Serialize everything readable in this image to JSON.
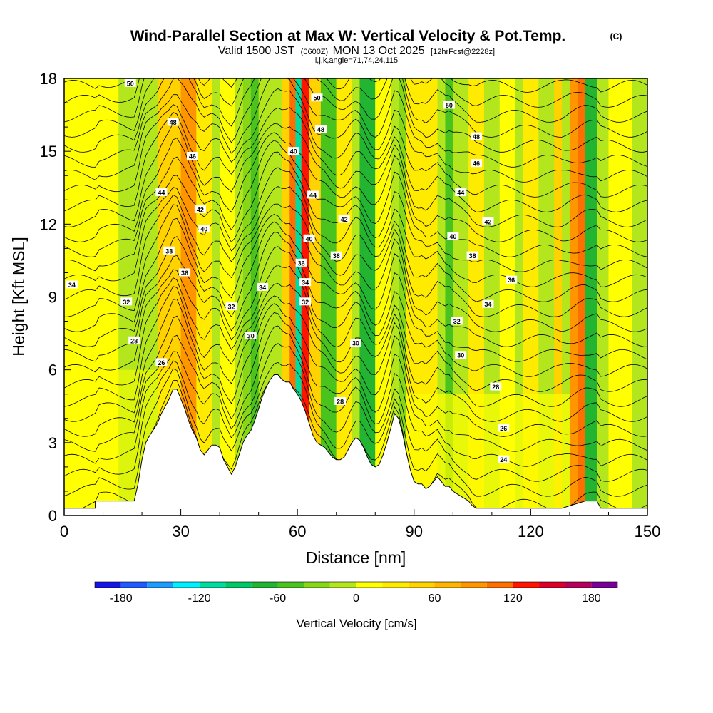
{
  "chart_data": {
    "type": "heatmap",
    "title": "Wind-Parallel Section at Max W: Vertical Velocity & Pot.Temp.",
    "title_mark": "(C)",
    "subtitle": {
      "valid_prefix": "Valid 1500 JST",
      "utc": "(0600Z)",
      "date": "MON 13 Oct 2025",
      "forecast": "[12hrFcst@2228z]"
    },
    "indices_line": "i,j,k,angle=71,74,24,115",
    "xlabel": "Distance [nm]",
    "ylabel": "Height [Kft MSL]",
    "xlim": [
      0,
      150
    ],
    "ylim": [
      0,
      18
    ],
    "x_ticks": [
      "0",
      "30",
      "60",
      "90",
      "120",
      "150"
    ],
    "y_ticks": [
      "0",
      "3",
      "6",
      "9",
      "12",
      "15",
      "18"
    ],
    "colorbar": {
      "label": "Vertical Velocity [cm/s]",
      "tick_labels": [
        "-180",
        "-120",
        "-60",
        "0",
        "60",
        "120",
        "180"
      ],
      "levels": [
        -200,
        -180,
        -160,
        -140,
        -120,
        -100,
        -80,
        -60,
        -40,
        -20,
        0,
        20,
        40,
        60,
        80,
        100,
        120,
        140,
        160,
        180,
        200
      ],
      "colors": [
        "#1414e6",
        "#1e5aff",
        "#1e9bff",
        "#00f0ff",
        "#00dca0",
        "#00c864",
        "#23b432",
        "#4bc31e",
        "#87d719",
        "#b4e61e",
        "#ffff00",
        "#ffeb00",
        "#ffd200",
        "#ffb400",
        "#ff9600",
        "#ff6e00",
        "#ff1400",
        "#dc0028",
        "#b4005a",
        "#780096"
      ]
    },
    "terrain": [
      [
        0,
        0.3
      ],
      [
        8,
        0.3
      ],
      [
        8,
        0.6
      ],
      [
        18,
        0.6
      ],
      [
        19,
        1.3
      ],
      [
        20,
        2.3
      ],
      [
        21,
        3.0
      ],
      [
        22,
        3.3
      ],
      [
        24,
        3.8
      ],
      [
        25,
        4.2
      ],
      [
        26,
        4.5
      ],
      [
        27,
        4.8
      ],
      [
        28,
        5.2
      ],
      [
        29,
        5.2
      ],
      [
        30,
        4.8
      ],
      [
        31,
        4.4
      ],
      [
        32,
        3.9
      ],
      [
        33,
        3.5
      ],
      [
        34,
        3.2
      ],
      [
        35,
        2.7
      ],
      [
        36,
        2.5
      ],
      [
        37,
        2.7
      ],
      [
        38,
        2.9
      ],
      [
        39,
        2.9
      ],
      [
        40,
        2.8
      ],
      [
        41,
        2.3
      ],
      [
        42,
        2.0
      ],
      [
        43,
        1.7
      ],
      [
        44,
        2.0
      ],
      [
        45,
        2.5
      ],
      [
        46,
        3.0
      ],
      [
        47,
        3.3
      ],
      [
        48,
        3.5
      ],
      [
        49,
        3.9
      ],
      [
        50,
        4.4
      ],
      [
        51,
        4.9
      ],
      [
        52,
        5.3
      ],
      [
        53,
        5.6
      ],
      [
        54,
        5.8
      ],
      [
        55,
        5.8
      ],
      [
        56,
        5.6
      ],
      [
        57,
        5.5
      ],
      [
        58,
        5.5
      ],
      [
        59,
        5.2
      ],
      [
        60,
        5.0
      ],
      [
        61,
        4.7
      ],
      [
        62,
        4.3
      ],
      [
        63,
        3.8
      ],
      [
        64,
        3.3
      ],
      [
        65,
        3.0
      ],
      [
        66,
        2.9
      ],
      [
        67,
        2.8
      ],
      [
        68,
        2.6
      ],
      [
        69,
        2.4
      ],
      [
        70,
        2.3
      ],
      [
        71,
        2.3
      ],
      [
        72,
        2.4
      ],
      [
        73,
        2.7
      ],
      [
        74,
        3.0
      ],
      [
        75,
        3.2
      ],
      [
        76,
        3.1
      ],
      [
        77,
        2.8
      ],
      [
        78,
        2.4
      ],
      [
        79,
        2.1
      ],
      [
        80,
        2.0
      ],
      [
        81,
        2.1
      ],
      [
        82,
        2.5
      ],
      [
        83,
        3.0
      ],
      [
        84,
        3.6
      ],
      [
        85,
        4.2
      ],
      [
        86,
        4.0
      ],
      [
        87,
        3.4
      ],
      [
        88,
        2.6
      ],
      [
        89,
        1.9
      ],
      [
        90,
        1.4
      ],
      [
        91,
        1.3
      ],
      [
        92,
        1.3
      ],
      [
        93,
        1.1
      ],
      [
        94,
        1.2
      ],
      [
        95,
        1.4
      ],
      [
        96,
        1.6
      ],
      [
        97,
        1.4
      ],
      [
        98,
        1.2
      ],
      [
        99,
        1.2
      ],
      [
        100,
        1.0
      ],
      [
        101,
        0.9
      ],
      [
        102,
        0.8
      ],
      [
        103,
        0.7
      ],
      [
        104,
        0.6
      ],
      [
        105,
        0.4
      ],
      [
        106,
        0.3
      ],
      [
        110,
        0.3
      ],
      [
        120,
        0.3
      ],
      [
        128,
        0.3
      ],
      [
        130,
        0.4
      ],
      [
        132,
        0.5
      ],
      [
        134,
        0.6
      ],
      [
        137,
        0.6
      ],
      [
        138,
        0.3
      ],
      [
        150,
        0.3
      ]
    ],
    "theta_contours": {
      "levels_k": [
        23,
        24,
        25,
        26,
        27,
        28,
        29,
        30,
        31,
        32,
        33,
        34,
        35,
        36,
        37,
        38,
        39,
        40,
        41,
        42,
        43,
        44,
        45,
        46,
        47,
        48,
        49,
        50,
        51
      ],
      "labels": [
        {
          "text": "50",
          "x": 17,
          "y": 17.8
        },
        {
          "text": "48",
          "x": 28,
          "y": 16.2
        },
        {
          "text": "46",
          "x": 33,
          "y": 14.8
        },
        {
          "text": "44",
          "x": 25,
          "y": 13.3
        },
        {
          "text": "42",
          "x": 35,
          "y": 12.6
        },
        {
          "text": "40",
          "x": 36,
          "y": 11.8
        },
        {
          "text": "38",
          "x": 27,
          "y": 10.9
        },
        {
          "text": "36",
          "x": 31,
          "y": 10.0
        },
        {
          "text": "34",
          "x": 2,
          "y": 9.5
        },
        {
          "text": "32",
          "x": 16,
          "y": 8.8
        },
        {
          "text": "32",
          "x": 43,
          "y": 8.6
        },
        {
          "text": "34",
          "x": 51,
          "y": 9.4
        },
        {
          "text": "30",
          "x": 48,
          "y": 7.4
        },
        {
          "text": "28",
          "x": 18,
          "y": 7.2
        },
        {
          "text": "26",
          "x": 25,
          "y": 6.3
        },
        {
          "text": "50",
          "x": 65,
          "y": 17.2
        },
        {
          "text": "48",
          "x": 66,
          "y": 15.9
        },
        {
          "text": "40",
          "x": 59,
          "y": 15.0
        },
        {
          "text": "44",
          "x": 64,
          "y": 13.2
        },
        {
          "text": "42",
          "x": 72,
          "y": 12.2
        },
        {
          "text": "40",
          "x": 63,
          "y": 11.4
        },
        {
          "text": "38",
          "x": 70,
          "y": 10.7
        },
        {
          "text": "36",
          "x": 61,
          "y": 10.4
        },
        {
          "text": "34",
          "x": 62,
          "y": 9.6
        },
        {
          "text": "32",
          "x": 62,
          "y": 8.8
        },
        {
          "text": "30",
          "x": 75,
          "y": 7.1
        },
        {
          "text": "28",
          "x": 71,
          "y": 4.7
        },
        {
          "text": "50",
          "x": 99,
          "y": 16.9
        },
        {
          "text": "48",
          "x": 106,
          "y": 15.6
        },
        {
          "text": "46",
          "x": 106,
          "y": 14.5
        },
        {
          "text": "44",
          "x": 102,
          "y": 13.3
        },
        {
          "text": "42",
          "x": 109,
          "y": 12.1
        },
        {
          "text": "40",
          "x": 100,
          "y": 11.5
        },
        {
          "text": "38",
          "x": 105,
          "y": 10.7
        },
        {
          "text": "36",
          "x": 115,
          "y": 9.7
        },
        {
          "text": "34",
          "x": 109,
          "y": 8.7
        },
        {
          "text": "32",
          "x": 101,
          "y": 8.0
        },
        {
          "text": "30",
          "x": 102,
          "y": 6.6
        },
        {
          "text": "28",
          "x": 111,
          "y": 5.3
        },
        {
          "text": "26",
          "x": 113,
          "y": 3.6
        },
        {
          "text": "24",
          "x": 113,
          "y": 2.3
        }
      ]
    }
  }
}
